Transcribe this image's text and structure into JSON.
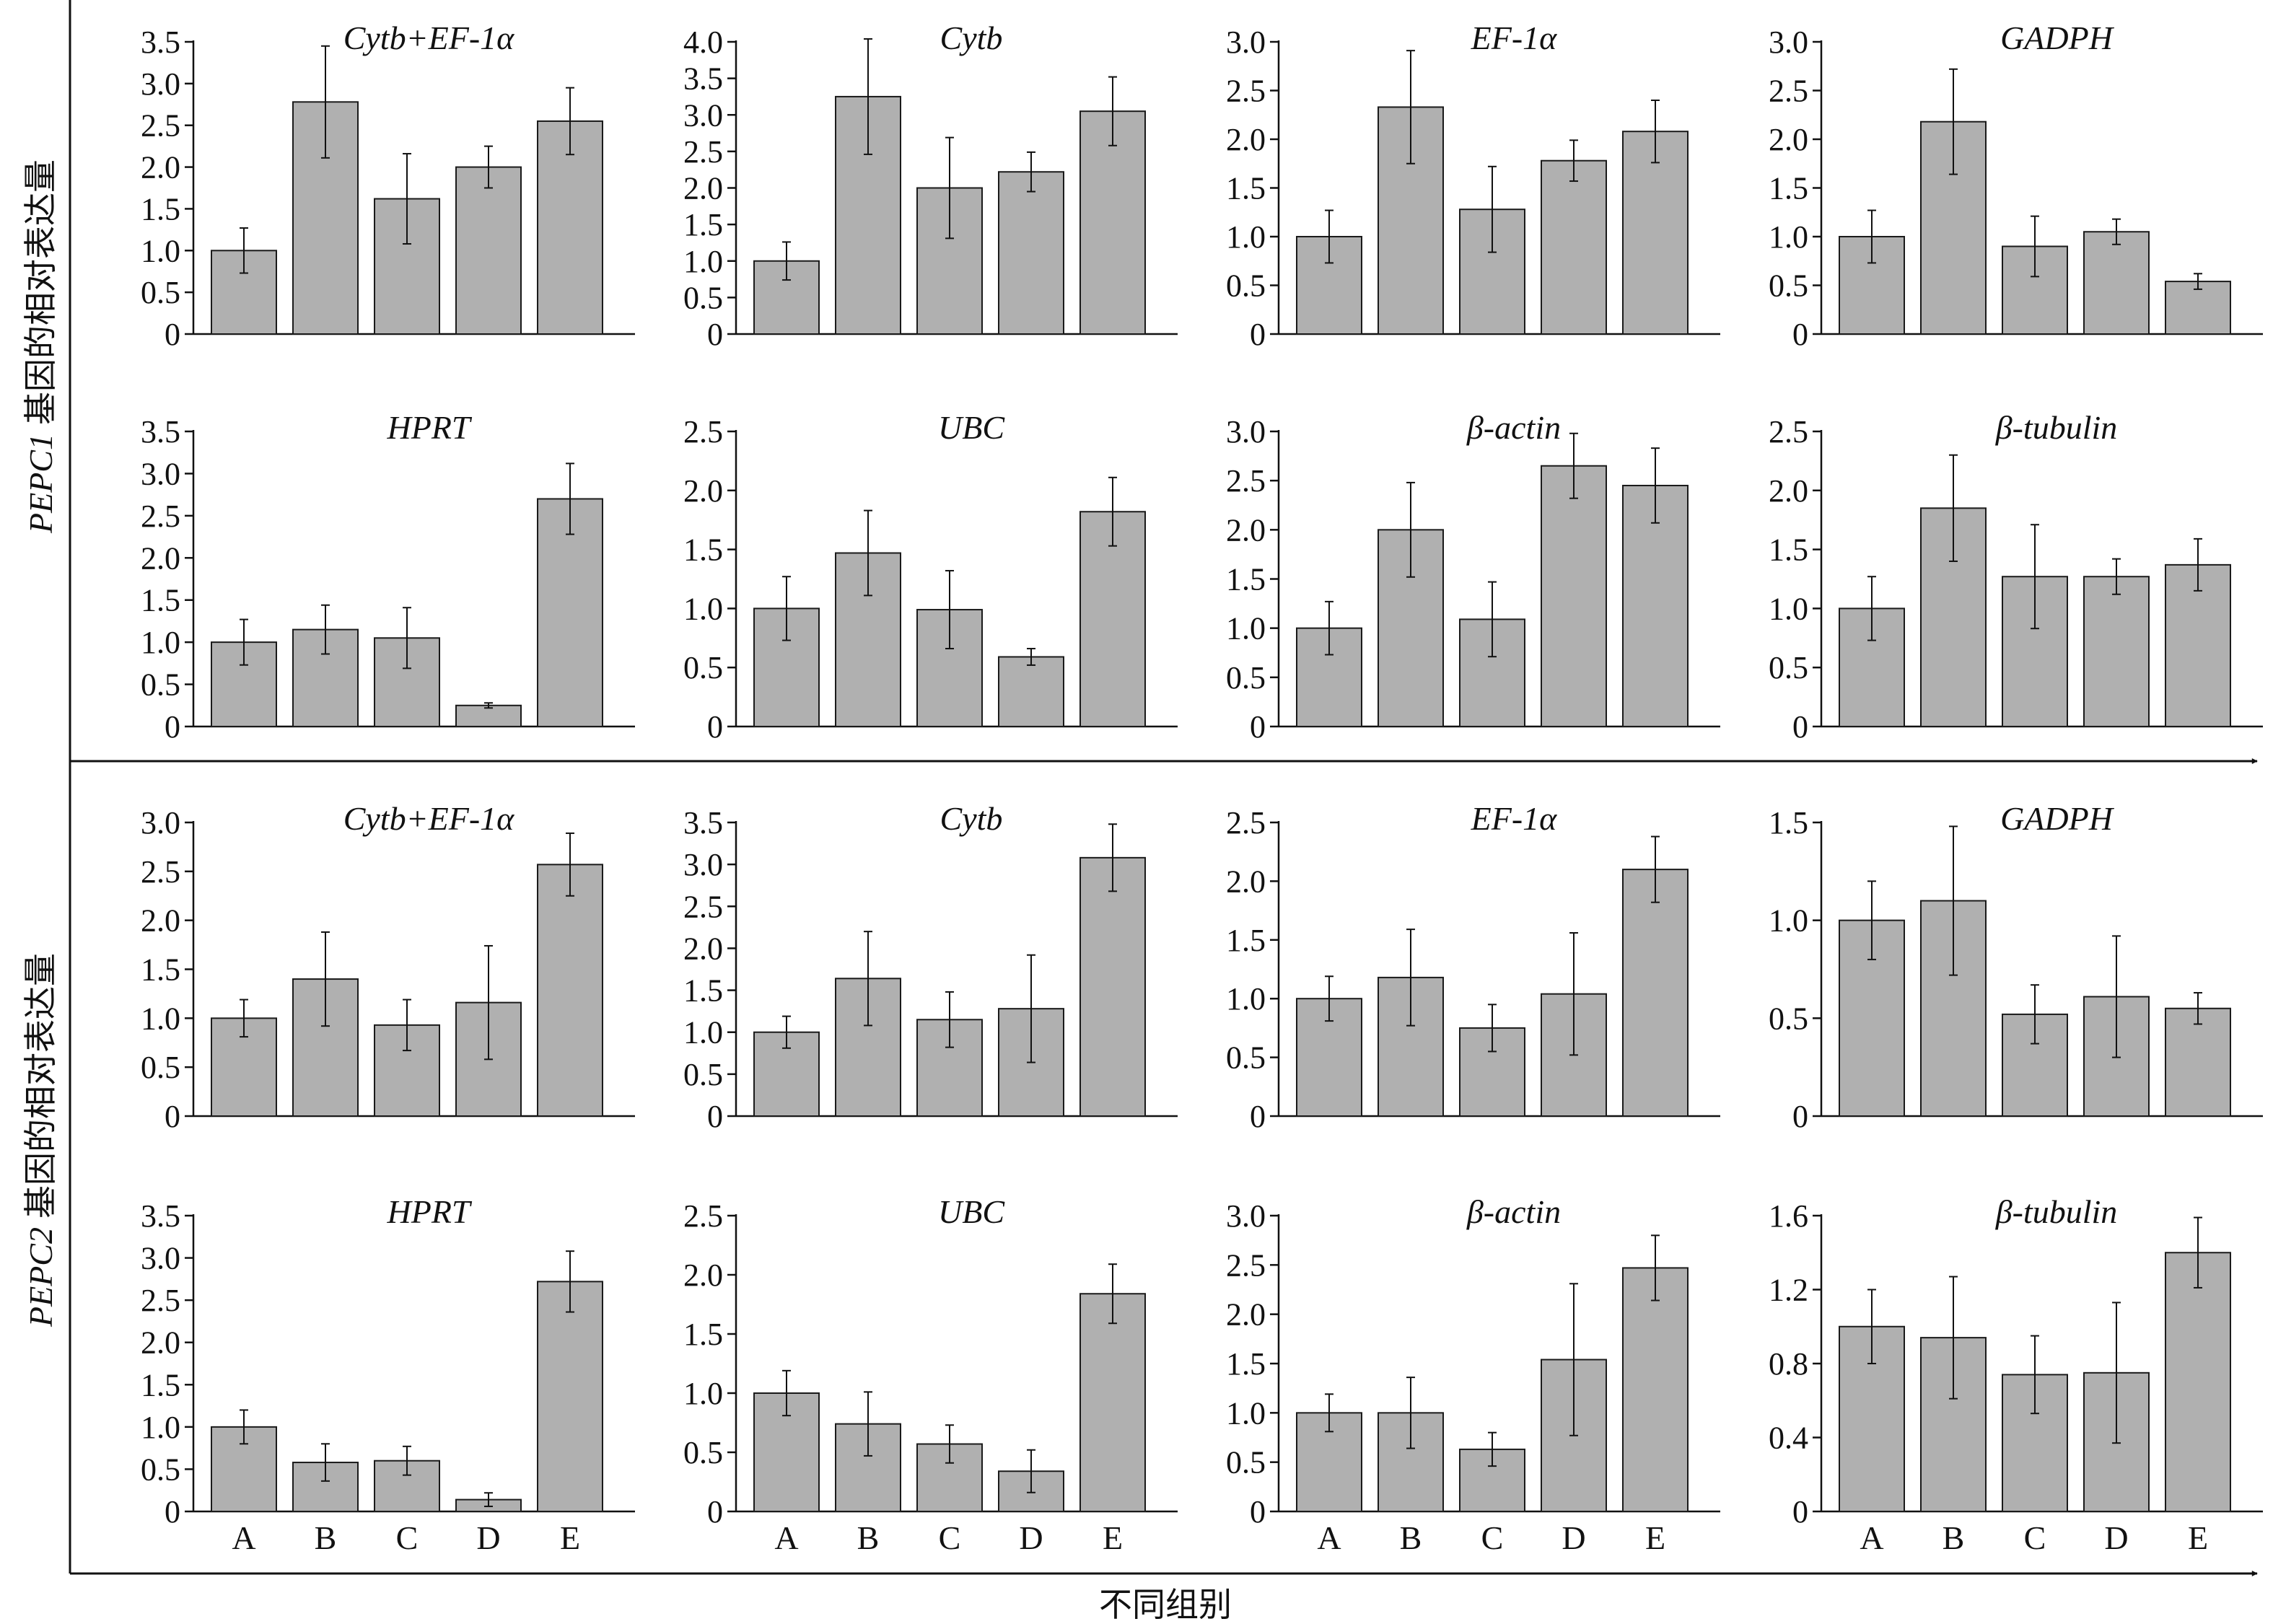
{
  "figure": {
    "row_labels": [
      {
        "gene": "PEPC1",
        "suffix": "基因的相对表达量"
      },
      {
        "gene": "PEPC2",
        "suffix": "基因的相对表达量"
      }
    ],
    "xlabel": "不同组别",
    "bar_color": "#b0b0b0",
    "bar_edge": "#1a1a1a"
  },
  "chart_data": [
    {
      "type": "bar",
      "title": "Cytb+EF-1α",
      "categories": [
        "A",
        "B",
        "C",
        "D",
        "E"
      ],
      "values": [
        1.0,
        2.78,
        1.62,
        2.0,
        2.55
      ],
      "errors": [
        0.27,
        0.67,
        0.54,
        0.25,
        0.4
      ],
      "ylim": [
        0,
        3.5
      ],
      "yticks": [
        0,
        0.5,
        1.0,
        1.5,
        2.0,
        2.5,
        3.0,
        3.5
      ],
      "ytick_labels": [
        "0",
        "0.5",
        "1.0",
        "1.5",
        "2.0",
        "2.5",
        "3.0",
        "3.5"
      ],
      "show_xticks": false
    },
    {
      "type": "bar",
      "title": "Cytb",
      "categories": [
        "A",
        "B",
        "C",
        "D",
        "E"
      ],
      "values": [
        1.0,
        3.25,
        2.0,
        2.22,
        3.05
      ],
      "errors": [
        0.26,
        0.79,
        0.69,
        0.27,
        0.47
      ],
      "ylim": [
        0,
        4.0
      ],
      "yticks": [
        0,
        0.5,
        1.0,
        1.5,
        2.0,
        2.5,
        3.0,
        3.5,
        4.0
      ],
      "ytick_labels": [
        "0",
        "0.5",
        "1.0",
        "1.5",
        "2.0",
        "2.5",
        "3.0",
        "3.5",
        "4.0"
      ],
      "show_xticks": false
    },
    {
      "type": "bar",
      "title": "EF-1α",
      "categories": [
        "A",
        "B",
        "C",
        "D",
        "E"
      ],
      "values": [
        1.0,
        2.33,
        1.28,
        1.78,
        2.08
      ],
      "errors": [
        0.27,
        0.58,
        0.44,
        0.21,
        0.32
      ],
      "ylim": [
        0,
        3.0
      ],
      "yticks": [
        0,
        0.5,
        1.0,
        1.5,
        2.0,
        2.5,
        3.0
      ],
      "ytick_labels": [
        "0",
        "0.5",
        "1.0",
        "1.5",
        "2.0",
        "2.5",
        "3.0"
      ],
      "show_xticks": false
    },
    {
      "type": "bar",
      "title": "GADPH",
      "categories": [
        "A",
        "B",
        "C",
        "D",
        "E"
      ],
      "values": [
        1.0,
        2.18,
        0.9,
        1.05,
        0.54
      ],
      "errors": [
        0.27,
        0.54,
        0.31,
        0.13,
        0.08
      ],
      "ylim": [
        0,
        3.0
      ],
      "yticks": [
        0,
        0.5,
        1.0,
        1.5,
        2.0,
        2.5,
        3.0
      ],
      "ytick_labels": [
        "0",
        "0.5",
        "1.0",
        "1.5",
        "2.0",
        "2.5",
        "3.0"
      ],
      "show_xticks": false
    },
    {
      "type": "bar",
      "title": "HPRT",
      "categories": [
        "A",
        "B",
        "C",
        "D",
        "E"
      ],
      "values": [
        1.0,
        1.15,
        1.05,
        0.25,
        2.7
      ],
      "errors": [
        0.27,
        0.29,
        0.36,
        0.03,
        0.42
      ],
      "ylim": [
        0,
        3.5
      ],
      "yticks": [
        0,
        0.5,
        1.0,
        1.5,
        2.0,
        2.5,
        3.0,
        3.5
      ],
      "ytick_labels": [
        "0",
        "0.5",
        "1.0",
        "1.5",
        "2.0",
        "2.5",
        "3.0",
        "3.5"
      ],
      "show_xticks": false
    },
    {
      "type": "bar",
      "title": "UBC",
      "categories": [
        "A",
        "B",
        "C",
        "D",
        "E"
      ],
      "values": [
        1.0,
        1.47,
        0.99,
        0.59,
        1.82
      ],
      "errors": [
        0.27,
        0.36,
        0.33,
        0.07,
        0.29
      ],
      "ylim": [
        0,
        2.5
      ],
      "yticks": [
        0,
        0.5,
        1.0,
        1.5,
        2.0,
        2.5
      ],
      "ytick_labels": [
        "0",
        "0.5",
        "1.0",
        "1.5",
        "2.0",
        "2.5"
      ],
      "show_xticks": false
    },
    {
      "type": "bar",
      "title": "β-actin",
      "categories": [
        "A",
        "B",
        "C",
        "D",
        "E"
      ],
      "values": [
        1.0,
        2.0,
        1.09,
        2.65,
        2.45
      ],
      "errors": [
        0.27,
        0.48,
        0.38,
        0.33,
        0.38
      ],
      "ylim": [
        0,
        3.0
      ],
      "yticks": [
        0,
        0.5,
        1.0,
        1.5,
        2.0,
        2.5,
        3.0
      ],
      "ytick_labels": [
        "0",
        "0.5",
        "1.0",
        "1.5",
        "2.0",
        "2.5",
        "3.0"
      ],
      "show_xticks": false
    },
    {
      "type": "bar",
      "title": "β-tubulin",
      "categories": [
        "A",
        "B",
        "C",
        "D",
        "E"
      ],
      "values": [
        1.0,
        1.85,
        1.27,
        1.27,
        1.37
      ],
      "errors": [
        0.27,
        0.45,
        0.44,
        0.15,
        0.22
      ],
      "ylim": [
        0,
        2.5
      ],
      "yticks": [
        0,
        0.5,
        1.0,
        1.5,
        2.0,
        2.5
      ],
      "ytick_labels": [
        "0",
        "0.5",
        "1.0",
        "1.5",
        "2.0",
        "2.5"
      ],
      "show_xticks": false
    },
    {
      "type": "bar",
      "title": "Cytb+EF-1α",
      "categories": [
        "A",
        "B",
        "C",
        "D",
        "E"
      ],
      "values": [
        1.0,
        1.4,
        0.93,
        1.16,
        2.57
      ],
      "errors": [
        0.19,
        0.48,
        0.26,
        0.58,
        0.32
      ],
      "ylim": [
        0,
        3.0
      ],
      "yticks": [
        0,
        0.5,
        1.0,
        1.5,
        2.0,
        2.5,
        3.0
      ],
      "ytick_labels": [
        "0",
        "0.5",
        "1.0",
        "1.5",
        "2.0",
        "2.5",
        "3.0"
      ],
      "show_xticks": false
    },
    {
      "type": "bar",
      "title": "Cytb",
      "categories": [
        "A",
        "B",
        "C",
        "D",
        "E"
      ],
      "values": [
        1.0,
        1.64,
        1.15,
        1.28,
        3.08
      ],
      "errors": [
        0.19,
        0.56,
        0.33,
        0.64,
        0.4
      ],
      "ylim": [
        0,
        3.5
      ],
      "yticks": [
        0,
        0.5,
        1.0,
        1.5,
        2.0,
        2.5,
        3.0,
        3.5
      ],
      "ytick_labels": [
        "0",
        "0.5",
        "1.0",
        "1.5",
        "2.0",
        "2.5",
        "3.0",
        "3.5"
      ],
      "show_xticks": false
    },
    {
      "type": "bar",
      "title": "EF-1α",
      "categories": [
        "A",
        "B",
        "C",
        "D",
        "E"
      ],
      "values": [
        1.0,
        1.18,
        0.75,
        1.04,
        2.1
      ],
      "errors": [
        0.19,
        0.41,
        0.2,
        0.52,
        0.28
      ],
      "ylim": [
        0,
        2.5
      ],
      "yticks": [
        0,
        0.5,
        1.0,
        1.5,
        2.0,
        2.5
      ],
      "ytick_labels": [
        "0",
        "0.5",
        "1.0",
        "1.5",
        "2.0",
        "2.5"
      ],
      "show_xticks": false
    },
    {
      "type": "bar",
      "title": "GADPH",
      "categories": [
        "A",
        "B",
        "C",
        "D",
        "E"
      ],
      "values": [
        1.0,
        1.1,
        0.52,
        0.61,
        0.55
      ],
      "errors": [
        0.2,
        0.38,
        0.15,
        0.31,
        0.08
      ],
      "ylim": [
        0,
        1.5
      ],
      "yticks": [
        0,
        0.5,
        1.0,
        1.5
      ],
      "ytick_labels": [
        "0",
        "0.5",
        "1.0",
        "1.5"
      ],
      "show_xticks": false
    },
    {
      "type": "bar",
      "title": "HPRT",
      "categories": [
        "A",
        "B",
        "C",
        "D",
        "E"
      ],
      "values": [
        1.0,
        0.58,
        0.6,
        0.14,
        2.72
      ],
      "errors": [
        0.2,
        0.22,
        0.17,
        0.08,
        0.36
      ],
      "ylim": [
        0,
        3.5
      ],
      "yticks": [
        0,
        0.5,
        1.0,
        1.5,
        2.0,
        2.5,
        3.0,
        3.5
      ],
      "ytick_labels": [
        "0",
        "0.5",
        "1.0",
        "1.5",
        "2.0",
        "2.5",
        "3.0",
        "3.5"
      ],
      "show_xticks": true
    },
    {
      "type": "bar",
      "title": "UBC",
      "categories": [
        "A",
        "B",
        "C",
        "D",
        "E"
      ],
      "values": [
        1.0,
        0.74,
        0.57,
        0.34,
        1.84
      ],
      "errors": [
        0.19,
        0.27,
        0.16,
        0.18,
        0.25
      ],
      "ylim": [
        0,
        2.5
      ],
      "yticks": [
        0,
        0.5,
        1.0,
        1.5,
        2.0,
        2.5
      ],
      "ytick_labels": [
        "0",
        "0.5",
        "1.0",
        "1.5",
        "2.0",
        "2.5"
      ],
      "show_xticks": true
    },
    {
      "type": "bar",
      "title": "β-actin",
      "categories": [
        "A",
        "B",
        "C",
        "D",
        "E"
      ],
      "values": [
        1.0,
        1.0,
        0.63,
        1.54,
        2.47
      ],
      "errors": [
        0.19,
        0.36,
        0.17,
        0.77,
        0.33
      ],
      "ylim": [
        0,
        3.0
      ],
      "yticks": [
        0,
        0.5,
        1.0,
        1.5,
        2.0,
        2.5,
        3.0
      ],
      "ytick_labels": [
        "0",
        "0.5",
        "1.0",
        "1.5",
        "2.0",
        "2.5",
        "3.0"
      ],
      "show_xticks": true
    },
    {
      "type": "bar",
      "title": "β-tubulin",
      "categories": [
        "A",
        "B",
        "C",
        "D",
        "E"
      ],
      "values": [
        1.0,
        0.94,
        0.74,
        0.75,
        1.4
      ],
      "errors": [
        0.2,
        0.33,
        0.21,
        0.38,
        0.19
      ],
      "ylim": [
        0,
        1.6
      ],
      "yticks": [
        0,
        0.4,
        0.8,
        1.2,
        1.6
      ],
      "ytick_labels": [
        "0",
        "0.4",
        "0.8",
        "1.2",
        "1.6"
      ],
      "show_xticks": true
    }
  ]
}
